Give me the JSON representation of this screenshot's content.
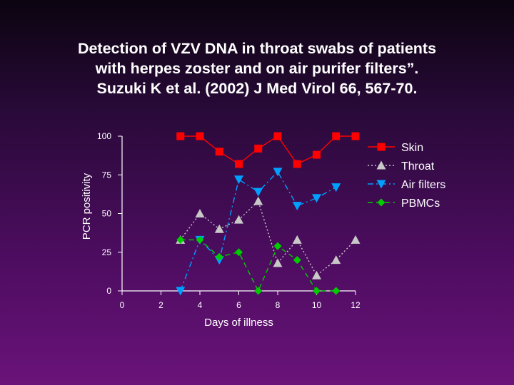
{
  "title_lines": [
    "Detection of VZV DNA in throat swabs of patients",
    "with herpes zoster and on air purifer filters”.",
    "Suzuki K et al. (2002) J Med Virol 66, 567-70."
  ],
  "chart_data": {
    "type": "line",
    "xlabel": "Days of illness",
    "ylabel": "PCR positivity",
    "xlim": [
      0,
      12
    ],
    "ylim": [
      0,
      100
    ],
    "xticks": [
      0,
      2,
      4,
      6,
      8,
      10,
      12
    ],
    "yticks": [
      0,
      25,
      50,
      75,
      100
    ],
    "grid": false,
    "legend_position": "top-right",
    "series": [
      {
        "name": "Skin",
        "color": "#ff0000",
        "marker": "square",
        "dash": "solid",
        "points": [
          [
            3,
            100
          ],
          [
            4,
            100
          ],
          [
            5,
            90
          ],
          [
            6,
            82
          ],
          [
            7,
            92
          ],
          [
            8,
            100
          ],
          [
            9,
            82
          ],
          [
            10,
            88
          ],
          [
            11,
            100
          ],
          [
            12,
            100
          ]
        ]
      },
      {
        "name": "Throat",
        "color": "#c8c8c8",
        "marker": "triangle-up",
        "dash": "dotted",
        "points": [
          [
            3,
            33
          ],
          [
            4,
            50
          ],
          [
            5,
            40
          ],
          [
            6,
            46
          ],
          [
            7,
            58
          ],
          [
            8,
            18
          ],
          [
            9,
            33
          ],
          [
            10,
            10
          ],
          [
            11,
            20
          ],
          [
            12,
            33
          ]
        ]
      },
      {
        "name": "Air filters",
        "color": "#00a0ff",
        "marker": "triangle-down",
        "dash": "dashdot",
        "points": [
          [
            3,
            0
          ],
          [
            4,
            33
          ],
          [
            5,
            20
          ],
          [
            6,
            72
          ],
          [
            7,
            64
          ],
          [
            8,
            77
          ],
          [
            9,
            55
          ],
          [
            10,
            60
          ],
          [
            11,
            67
          ]
        ]
      },
      {
        "name": "PBMCs",
        "color": "#00cc00",
        "marker": "diamond",
        "dash": "dashed",
        "points": [
          [
            3,
            33
          ],
          [
            4,
            33
          ],
          [
            5,
            22
          ],
          [
            6,
            25
          ],
          [
            7,
            0
          ],
          [
            8,
            29
          ],
          [
            9,
            20
          ],
          [
            10,
            0
          ],
          [
            11,
            0
          ]
        ]
      }
    ]
  }
}
